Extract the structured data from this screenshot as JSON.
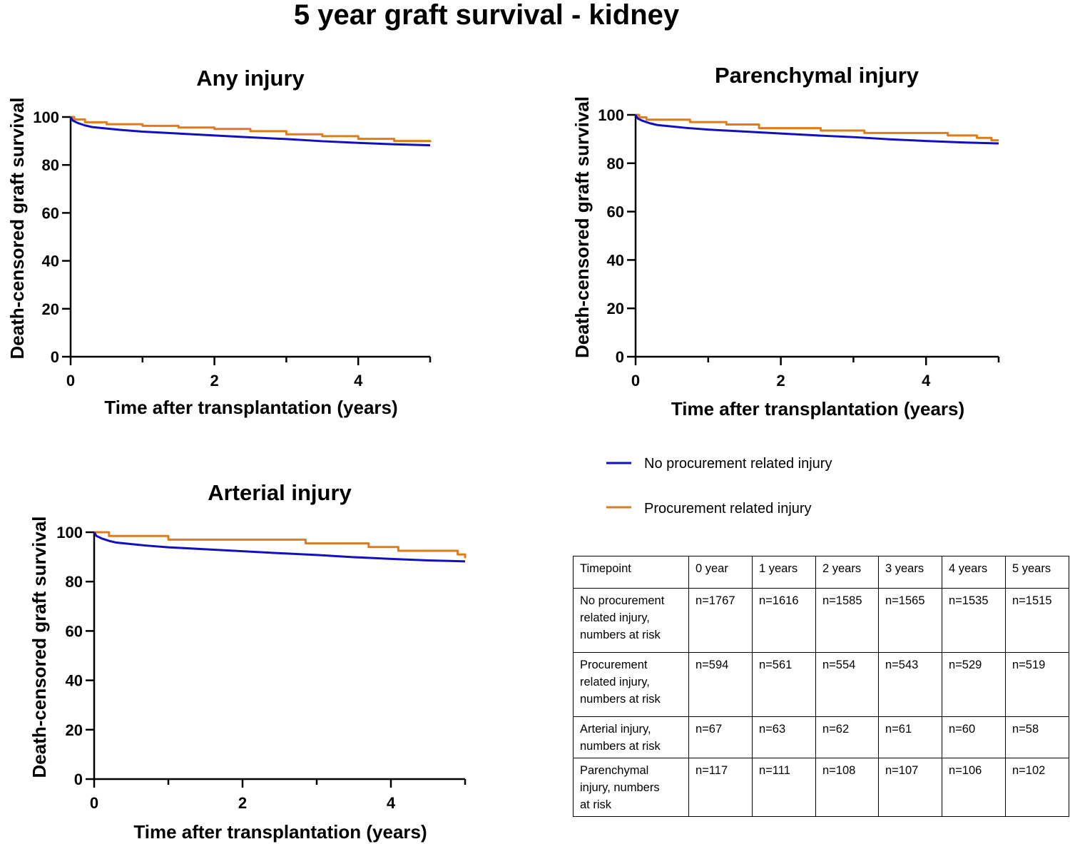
{
  "figure_title": "5 year graft survival - kidney",
  "colors": {
    "no_injury": "#1010c0",
    "injury": "#e07b1a",
    "axis": "#000000"
  },
  "legend": [
    {
      "series": "no_injury",
      "label": "No procurement related injury"
    },
    {
      "series": "injury",
      "label": "Procurement related injury"
    }
  ],
  "chart_data": [
    {
      "type": "line",
      "id": "any",
      "title": "Any injury",
      "xlabel": "Time after transplantation (years)",
      "ylabel": "Death-censored graft survival",
      "xlim": [
        0,
        5
      ],
      "ylim": [
        0,
        100
      ],
      "xticks": [
        0,
        2,
        4
      ],
      "xminor": [
        1,
        3,
        5
      ],
      "yticks": [
        0,
        20,
        40,
        60,
        80,
        100
      ],
      "series": [
        {
          "name": "No procurement related injury",
          "key": "no_injury",
          "x": [
            0,
            0.03,
            0.1,
            0.2,
            0.3,
            0.5,
            0.7,
            1.0,
            1.5,
            2.0,
            2.5,
            3.0,
            3.5,
            4.0,
            4.5,
            5.0
          ],
          "y": [
            100,
            98.5,
            97.5,
            96.5,
            95.8,
            95.2,
            94.6,
            93.9,
            93.1,
            92.3,
            91.5,
            90.8,
            89.9,
            89.2,
            88.6,
            88.2
          ]
        },
        {
          "name": "Procurement related injury",
          "key": "injury",
          "x": [
            0,
            0.05,
            0.2,
            0.5,
            1.0,
            1.5,
            2.0,
            2.5,
            3.0,
            3.5,
            4.0,
            4.5,
            5.0
          ],
          "y": [
            100,
            99.0,
            97.8,
            97.0,
            96.3,
            95.6,
            95.0,
            94.1,
            92.8,
            92.0,
            90.9,
            90.0,
            89.5
          ],
          "step": true
        }
      ]
    },
    {
      "type": "line",
      "id": "parenchymal",
      "title": "Parenchymal injury",
      "xlabel": "Time after transplantation (years)",
      "ylabel": "Death-censored graft survival",
      "xlim": [
        0,
        5
      ],
      "ylim": [
        0,
        100
      ],
      "xticks": [
        0,
        2,
        4
      ],
      "xminor": [
        1,
        3,
        5
      ],
      "yticks": [
        0,
        20,
        40,
        60,
        80,
        100
      ],
      "series": [
        {
          "name": "No procurement related injury",
          "key": "no_injury",
          "x": [
            0,
            0.03,
            0.1,
            0.2,
            0.3,
            0.5,
            0.7,
            1.0,
            1.5,
            2.0,
            2.5,
            3.0,
            3.5,
            4.0,
            4.5,
            5.0
          ],
          "y": [
            100,
            98.5,
            97.5,
            96.5,
            95.8,
            95.2,
            94.6,
            93.9,
            93.1,
            92.3,
            91.5,
            90.8,
            89.9,
            89.2,
            88.6,
            88.2
          ]
        },
        {
          "name": "Procurement related injury",
          "key": "injury",
          "x": [
            0,
            0.05,
            0.15,
            0.75,
            1.25,
            1.7,
            2.55,
            3.15,
            4.3,
            4.7,
            4.9,
            5.0
          ],
          "y": [
            100,
            99.0,
            98.0,
            97.0,
            96.0,
            94.5,
            93.5,
            92.5,
            91.5,
            90.5,
            89.5,
            89.5
          ],
          "step": true
        }
      ]
    },
    {
      "type": "line",
      "id": "arterial",
      "title": "Arterial injury",
      "xlabel": "Time after transplantation (years)",
      "ylabel": "Death-censored graft survival",
      "xlim": [
        0,
        5
      ],
      "ylim": [
        0,
        100
      ],
      "xticks": [
        0,
        2,
        4
      ],
      "xminor": [
        1,
        3,
        5
      ],
      "yticks": [
        0,
        20,
        40,
        60,
        80,
        100
      ],
      "series": [
        {
          "name": "No procurement related injury",
          "key": "no_injury",
          "x": [
            0,
            0.03,
            0.1,
            0.2,
            0.3,
            0.5,
            0.7,
            1.0,
            1.5,
            2.0,
            2.5,
            3.0,
            3.5,
            4.0,
            4.5,
            5.0
          ],
          "y": [
            100,
            98.5,
            97.5,
            96.5,
            95.8,
            95.2,
            94.6,
            93.9,
            93.1,
            92.3,
            91.5,
            90.8,
            89.9,
            89.2,
            88.6,
            88.2
          ]
        },
        {
          "name": "Procurement related injury",
          "key": "injury",
          "x": [
            0,
            0.2,
            1.0,
            2.85,
            3.7,
            4.1,
            4.9,
            5.0
          ],
          "y": [
            100,
            98.5,
            97.0,
            95.5,
            94.0,
            92.5,
            91.0,
            89.5
          ],
          "step": true
        }
      ]
    }
  ],
  "risk_table": {
    "header": [
      "Timepoint",
      "0 year",
      "1 years",
      "2 years",
      "3 years",
      "4 years",
      "5 years"
    ],
    "rows": [
      {
        "label": [
          "No procurement",
          "related injury,",
          "numbers at risk"
        ],
        "values": [
          "n=1767",
          "n=1616",
          "n=1585",
          "n=1565",
          "n=1535",
          "n=1515"
        ]
      },
      {
        "label": [
          "Procurement",
          "related injury,",
          "numbers at risk"
        ],
        "values": [
          "n=594",
          "n=561",
          "n=554",
          "n=543",
          "n=529",
          "n=519"
        ]
      },
      {
        "label": [
          "Arterial injury,",
          "numbers at risk"
        ],
        "values": [
          "n=67",
          "n=63",
          "n=62",
          "n=61",
          "n=60",
          "n=58"
        ]
      },
      {
        "label": [
          "Parenchymal",
          "injury, numbers",
          "at risk"
        ],
        "values": [
          "n=117",
          "n=111",
          "n=108",
          "n=107",
          "n=106",
          "n=102"
        ]
      }
    ]
  }
}
